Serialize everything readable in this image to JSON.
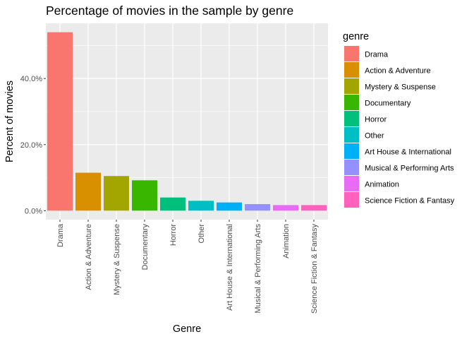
{
  "chart_data": {
    "type": "bar",
    "title": "Percentage of movies in the sample by genre",
    "xlabel": "Genre",
    "ylabel": "Percent of movies",
    "legend_title": "genre",
    "legend_position": "right",
    "grid": true,
    "ylim": [
      -0.027,
      0.567
    ],
    "yticks": [
      0,
      0.2,
      0.4
    ],
    "ytick_labels": [
      "0.0%",
      "20.0%",
      "40.0%"
    ],
    "categories": [
      "Drama",
      "Action & Adventure",
      "Mystery & Suspense",
      "Documentary",
      "Horror",
      "Other",
      "Art House & International",
      "Musical & Performing Arts",
      "Animation",
      "Science Fiction & Fantasy"
    ],
    "values": [
      0.54,
      0.115,
      0.105,
      0.092,
      0.04,
      0.03,
      0.025,
      0.02,
      0.017,
      0.017
    ],
    "colors": [
      "#F8766D",
      "#D89000",
      "#A3A500",
      "#39B600",
      "#00BF7D",
      "#00BFC4",
      "#00B0F6",
      "#9590FF",
      "#E76BF3",
      "#FF62BC"
    ]
  }
}
